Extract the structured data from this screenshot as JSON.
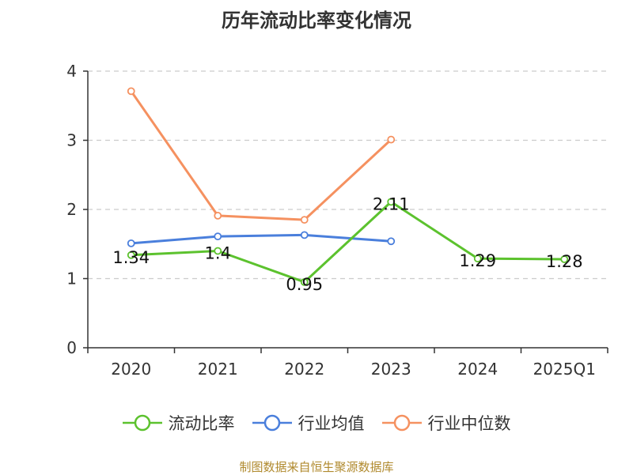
{
  "chart_data": {
    "type": "line",
    "title": "历年流动比率变化情况",
    "categories": [
      "2020",
      "2021",
      "2022",
      "2023",
      "2024",
      "2025Q1"
    ],
    "ylim": [
      0,
      4
    ],
    "yticks": [
      "0",
      "1",
      "2",
      "3",
      "4"
    ],
    "grid": true,
    "legend_position": "bottom",
    "series": [
      {
        "name": "流动比率",
        "color": "#5cc22e",
        "values": [
          1.34,
          1.4,
          0.95,
          2.11,
          1.29,
          1.28
        ],
        "labels": [
          "1.34",
          "1.4",
          "0.95",
          "2.11",
          "1.29",
          "1.28"
        ]
      },
      {
        "name": "行业均值",
        "color": "#4a7fdc",
        "values": [
          1.51,
          1.61,
          1.63,
          1.54,
          null,
          null
        ]
      },
      {
        "name": "行业中位数",
        "color": "#f59160",
        "values": [
          3.71,
          1.91,
          1.85,
          3.01,
          null,
          null
        ]
      }
    ]
  },
  "source": "制图数据来自恒生聚源数据库"
}
